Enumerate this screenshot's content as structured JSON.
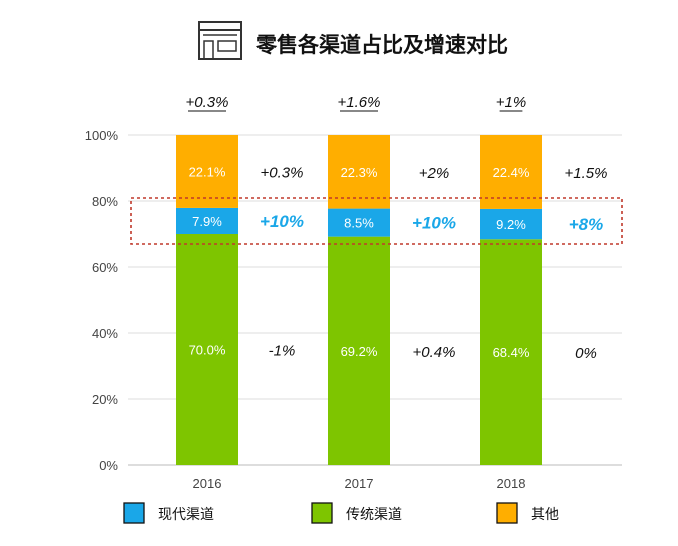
{
  "title": "零售各渠道占比及增速对比",
  "icon": "store-icon",
  "colors": {
    "modern": "#1aa7e8",
    "traditional": "#7ec500",
    "other": "#ffae00",
    "highlight": "#c0392b"
  },
  "chart_data": {
    "type": "bar",
    "stacked": true,
    "categories": [
      "2016",
      "2017",
      "2018"
    ],
    "ylim": [
      0,
      100
    ],
    "yticks": [
      "0%",
      "20%",
      "40%",
      "60%",
      "80%",
      "100%"
    ],
    "grid": true,
    "legend_position": "bottom",
    "series": [
      {
        "name": "传统渠道",
        "key": "traditional",
        "values": [
          70.0,
          69.2,
          68.4
        ],
        "labels": [
          "70.0%",
          "69.2%",
          "68.4%"
        ],
        "growth": [
          "-1%",
          "+0.4%",
          "0%"
        ]
      },
      {
        "name": "现代渠道",
        "key": "modern",
        "values": [
          7.9,
          8.5,
          9.2
        ],
        "labels": [
          "7.9%",
          "8.5%",
          "9.2%"
        ],
        "growth": [
          "+10%",
          "+10%",
          "+8%"
        ]
      },
      {
        "name": "其他",
        "key": "other",
        "values": [
          22.1,
          22.3,
          22.4
        ],
        "labels": [
          "22.1%",
          "22.3%",
          "22.4%"
        ],
        "growth": [
          "+0.3%",
          "+2%",
          "+1.5%"
        ]
      }
    ],
    "total_growth": [
      "+0.3%",
      "+1.6%",
      "+1%"
    ],
    "legend": [
      "现代渠道",
      "传统渠道",
      "其他"
    ]
  }
}
